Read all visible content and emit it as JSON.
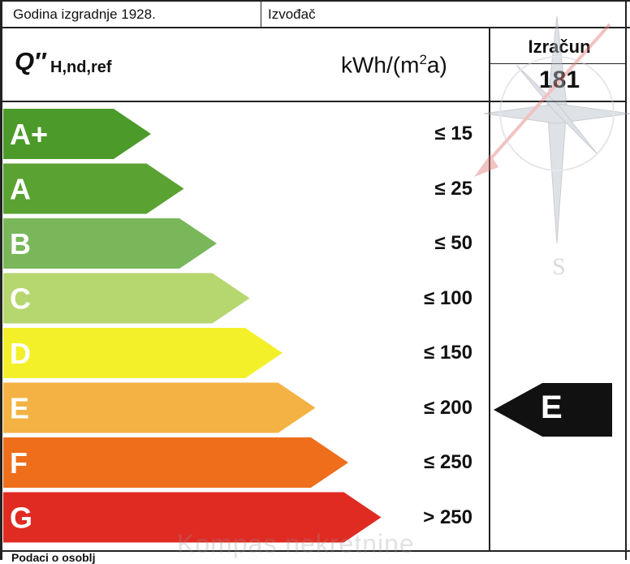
{
  "header": {
    "year_label": "Godina izgradnje 1928.",
    "contractor_label": "Izvođač"
  },
  "metric": {
    "symbol": "Q″",
    "subscript": "H,nd,ref",
    "unit_prefix": "kWh/(m",
    "unit_exp": "2",
    "unit_suffix": "a)"
  },
  "calculation": {
    "label": "Izračun",
    "value": "181"
  },
  "classes": [
    {
      "label": "A+",
      "threshold": "≤ 15",
      "color": "#4c9a2a"
    },
    {
      "label": "A",
      "threshold": "≤ 25",
      "color": "#5aa232"
    },
    {
      "label": "B",
      "threshold": "≤ 50",
      "color": "#79b75a"
    },
    {
      "label": "C",
      "threshold": "≤ 100",
      "color": "#b6d66f"
    },
    {
      "label": "D",
      "threshold": "≤ 150",
      "color": "#f3f02a"
    },
    {
      "label": "E",
      "threshold": "≤ 200",
      "color": "#f3b243"
    },
    {
      "label": "F",
      "threshold": "≤ 250",
      "color": "#ee6e1b"
    },
    {
      "label": "G",
      "threshold": "> 250",
      "color": "#e02b23"
    }
  ],
  "current_class": {
    "label": "E",
    "color": "#111111"
  },
  "watermark": "Kompas nekretnine",
  "footer_partial": "Podaci o osoblj"
}
